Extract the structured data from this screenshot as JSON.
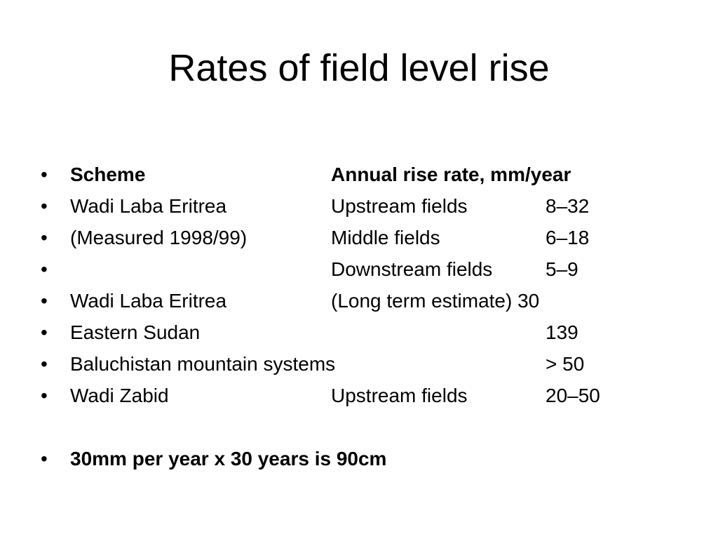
{
  "slide": {
    "title": "Rates of field level rise"
  },
  "bullet_glyph": "•",
  "rows": [
    {
      "scheme": "Scheme",
      "area": "Annual rise rate, mm/year",
      "rate": ""
    },
    {
      "scheme": "Wadi Laba Eritrea",
      "area": "Upstream fields",
      "rate": "8–32"
    },
    {
      "scheme": "(Measured 1998/99)",
      "area": "Middle fields",
      "rate": "6–18"
    },
    {
      "scheme": "",
      "area": "Downstream fields",
      "rate": "5–9"
    },
    {
      "scheme": "Wadi Laba Eritrea",
      "area": "(Long term estimate) 30",
      "rate": ""
    },
    {
      "scheme": "Eastern Sudan",
      "area": "",
      "rate": "139"
    },
    {
      "scheme": "Baluchistan mountain systems",
      "area": "",
      "rate": "> 50"
    },
    {
      "scheme": "Wadi Zabid",
      "area": "Upstream fields",
      "rate": "20–50"
    }
  ],
  "summary": "30mm per year x 30 years is 90cm"
}
